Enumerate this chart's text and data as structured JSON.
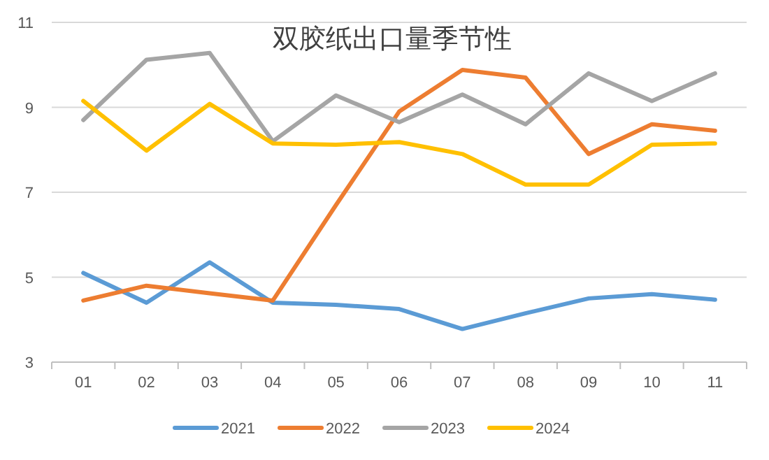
{
  "chart_data": {
    "type": "line",
    "title": "双胶纸出口量季节性",
    "categories": [
      "01",
      "02",
      "03",
      "04",
      "05",
      "06",
      "07",
      "08",
      "09",
      "10",
      "11"
    ],
    "series": [
      {
        "name": "2021",
        "color": "#5b9bd5",
        "values": [
          5.1,
          4.4,
          5.35,
          4.4,
          4.35,
          4.25,
          3.78,
          4.15,
          4.5,
          4.6,
          4.47
        ]
      },
      {
        "name": "2022",
        "color": "#ed7d31",
        "values": [
          4.45,
          4.8,
          4.62,
          4.45,
          6.7,
          8.9,
          9.88,
          9.7,
          7.9,
          8.6,
          8.45
        ]
      },
      {
        "name": "2023",
        "color": "#a5a5a5",
        "values": [
          8.7,
          10.12,
          10.28,
          8.2,
          9.28,
          8.65,
          9.3,
          8.6,
          9.8,
          9.15,
          9.8
        ]
      },
      {
        "name": "2024",
        "color": "#ffc000",
        "values": [
          9.15,
          7.98,
          9.08,
          8.15,
          8.12,
          8.18,
          7.9,
          7.18,
          7.18,
          8.12,
          8.15
        ]
      }
    ],
    "ylim": [
      3,
      11
    ],
    "yticks": [
      3,
      5,
      7,
      9,
      11
    ],
    "grid": "y",
    "legend": "bottom",
    "marker": "none",
    "line_style": "solid"
  }
}
